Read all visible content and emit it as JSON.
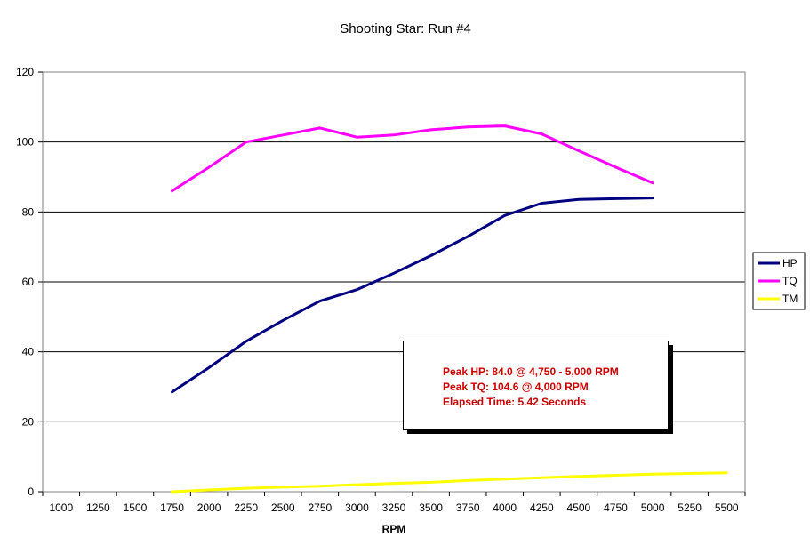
{
  "chart_data": {
    "type": "line",
    "title": "Shooting Star: Run #4",
    "xlabel": "RPM",
    "ylabel": "",
    "categories": [
      "1000",
      "1250",
      "1500",
      "1750",
      "2000",
      "2250",
      "2500",
      "2750",
      "3000",
      "3250",
      "3500",
      "3750",
      "4000",
      "4250",
      "4500",
      "4750",
      "5000",
      "5250",
      "5500"
    ],
    "ylim": [
      0,
      120
    ],
    "yticks": [
      0,
      20,
      40,
      60,
      80,
      100,
      120
    ],
    "grid": true,
    "legend_position": "right",
    "series": [
      {
        "name": "HP",
        "color": "#000080",
        "values": [
          null,
          null,
          null,
          28.5,
          35.5,
          43,
          49,
          54.5,
          57.8,
          62.5,
          67.5,
          73,
          79,
          82.5,
          83.6,
          83.8,
          84.0,
          null,
          null
        ]
      },
      {
        "name": "TQ",
        "color": "#ff00ff",
        "values": [
          null,
          null,
          null,
          86,
          92.8,
          100,
          102,
          104,
          101.4,
          102,
          103.5,
          104.3,
          104.6,
          102.3,
          97.5,
          92.8,
          88.3,
          null,
          null
        ]
      },
      {
        "name": "TM",
        "color": "#ffff00",
        "values": [
          null,
          null,
          null,
          0,
          0.5,
          1,
          1.3,
          1.6,
          2.0,
          2.4,
          2.7,
          3.2,
          3.6,
          4.0,
          4.4,
          4.7,
          5.0,
          5.2,
          5.4
        ]
      }
    ],
    "annotations": [
      "Peak HP: 84.0 @ 4,750 - 5,000 RPM",
      "Peak TQ: 104.6 @ 4,000 RPM",
      "Elapsed Time: 5.42 Seconds"
    ]
  }
}
